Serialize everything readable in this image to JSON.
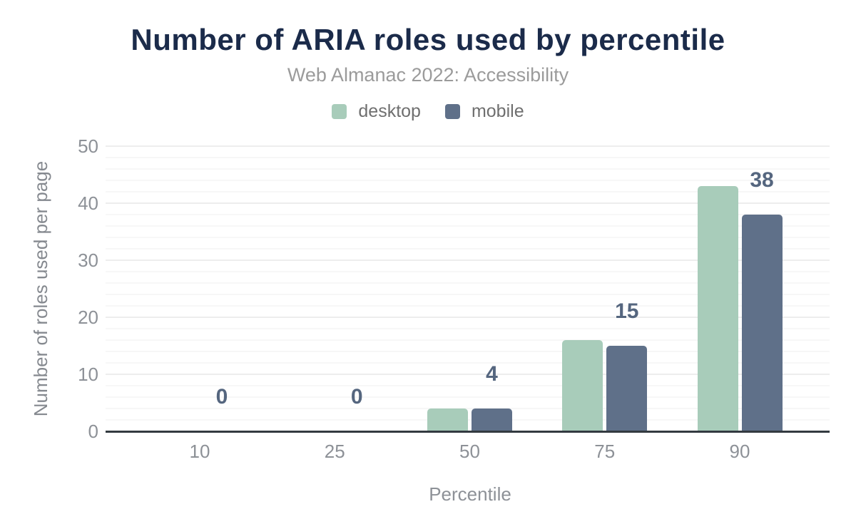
{
  "chart_data": {
    "type": "bar",
    "title": "Number of ARIA roles used by percentile",
    "subtitle": "Web Almanac 2022: Accessibility",
    "xlabel": "Percentile",
    "ylabel": "Number of roles used per page",
    "categories": [
      "10",
      "25",
      "50",
      "75",
      "90"
    ],
    "series": [
      {
        "name": "desktop",
        "color": "#a8ccba",
        "values": [
          0,
          0,
          4,
          16,
          43
        ],
        "show_value_labels": false
      },
      {
        "name": "mobile",
        "color": "#5f7089",
        "values": [
          0,
          0,
          4,
          15,
          38
        ],
        "show_value_labels": true
      }
    ],
    "value_labels_shown": [
      "0",
      "0",
      "4",
      "15",
      "38"
    ],
    "ylim": [
      0,
      50
    ],
    "y_ticks": [
      "0",
      "10",
      "20",
      "30",
      "40",
      "50"
    ],
    "y_major_step": 10,
    "y_minor_step": 2,
    "grid": true,
    "legend_position": "top"
  },
  "colors": {
    "background": "#ffffff",
    "title": "#1b2b4a",
    "subtitle": "#9b9b9b",
    "legend_text": "#6f6f6f",
    "axis_text": "#8d9197",
    "axis_title_text": "#85898f",
    "value_label": "#55667f",
    "axis_line": "#333a40",
    "grid_major": "#ededed",
    "grid_minor": "#f7f7f7"
  }
}
